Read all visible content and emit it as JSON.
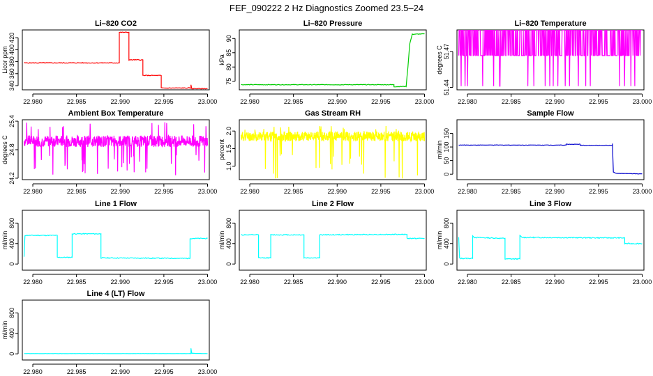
{
  "page": {
    "title": "FEF_090222  2 Hz Diagnostics Zoomed 23.5–24"
  },
  "chart_data": [
    {
      "type": "line",
      "title": "Li–820 CO2",
      "ylabel": "Licor ppm",
      "color": "#ff0000",
      "xlim": [
        22.9788,
        23.0002
      ],
      "ylim": [
        333,
        433
      ],
      "yticks": [
        340,
        360,
        380,
        400,
        420
      ],
      "xticks": [
        22.98,
        22.985,
        22.99,
        22.995,
        23.0
      ],
      "xtick_labels": [
        "22.980",
        "22.985",
        "22.990",
        "22.995",
        "23.000"
      ],
      "style": "step",
      "noise": 0.6,
      "series": [
        {
          "x": 22.979,
          "y": 378
        },
        {
          "x": 22.9899,
          "y": 378
        },
        {
          "x": 22.9899,
          "y": 429
        },
        {
          "x": 22.991,
          "y": 429
        },
        {
          "x": 22.991,
          "y": 383
        },
        {
          "x": 22.9926,
          "y": 383
        },
        {
          "x": 22.9926,
          "y": 357
        },
        {
          "x": 22.9947,
          "y": 357
        },
        {
          "x": 22.9947,
          "y": 336
        },
        {
          "x": 22.9981,
          "y": 336
        },
        {
          "x": 22.9981,
          "y": 341
        },
        {
          "x": 22.9982,
          "y": 335
        },
        {
          "x": 23.0,
          "y": 335
        }
      ]
    },
    {
      "type": "line",
      "title": "Li–820 Pressure",
      "ylabel": "kPa",
      "color": "#00cc00",
      "xlim": [
        22.9788,
        23.0002
      ],
      "ylim": [
        72,
        93
      ],
      "yticks": [
        75,
        80,
        85,
        90
      ],
      "xticks": [
        22.98,
        22.985,
        22.99,
        22.995,
        23.0
      ],
      "xtick_labels": [
        "22.980",
        "22.985",
        "22.990",
        "22.995",
        "23.000"
      ],
      "style": "step",
      "noise": 0.1,
      "series": [
        {
          "x": 22.979,
          "y": 73.8
        },
        {
          "x": 22.9965,
          "y": 73.8
        },
        {
          "x": 22.9965,
          "y": 73.1
        },
        {
          "x": 22.9979,
          "y": 73.2
        },
        {
          "x": 22.9981,
          "y": 80
        },
        {
          "x": 22.9983,
          "y": 88
        },
        {
          "x": 22.9986,
          "y": 91.5
        },
        {
          "x": 23.0,
          "y": 91.6
        }
      ]
    },
    {
      "type": "line",
      "title": "Li–820 Temperature",
      "ylabel": "degrees C",
      "color": "#ff00ff",
      "xlim": [
        22.9788,
        23.0002
      ],
      "ylim": [
        51.438,
        51.488
      ],
      "yticks": [
        51.44,
        51.47
      ],
      "xticks": [
        22.98,
        22.985,
        22.99,
        22.995,
        23.0
      ],
      "xtick_labels": [
        "22.980",
        "22.985",
        "22.990",
        "22.995",
        "23.000"
      ],
      "style": "quantized",
      "band": [
        51.4666,
        51.488
      ],
      "spike_to": 51.441,
      "seed": 3
    },
    {
      "type": "line",
      "title": "Ambient Box Temperature",
      "ylabel": "degrees C",
      "color": "#ff00ff",
      "xlim": [
        22.9788,
        23.0002
      ],
      "ylim": [
        24.17,
        25.43
      ],
      "yticks": [
        24.2,
        24.8,
        25.4
      ],
      "xticks": [
        22.98,
        22.985,
        22.99,
        22.995,
        23.0
      ],
      "xtick_labels": [
        "22.980",
        "22.985",
        "22.990",
        "22.995",
        "23.000"
      ],
      "style": "noise",
      "mean": 24.98,
      "amp": 0.12,
      "spikes_down": 24.25,
      "spikes_up": 25.38,
      "seed": 7
    },
    {
      "type": "line",
      "title": "Gas Stream RH",
      "ylabel": "percent",
      "color": "#ffff00",
      "xlim": [
        22.9788,
        23.0002
      ],
      "ylim": [
        0.62,
        2.32
      ],
      "yticks": [
        1.0,
        1.5,
        2.0
      ],
      "ytick_labels": [
        "1.0",
        "1.5",
        "2.0"
      ],
      "xticks": [
        22.98,
        22.985,
        22.99,
        22.995,
        23.0
      ],
      "xtick_labels": [
        "22.980",
        "22.985",
        "22.990",
        "22.995",
        "23.000"
      ],
      "style": "noise",
      "mean": 1.85,
      "amp": 0.14,
      "spikes_down": 0.65,
      "spikes_up": 2.15,
      "seed": 11
    },
    {
      "type": "line",
      "title": "Sample Flow",
      "ylabel": "ml/min",
      "color": "#0000cc",
      "xlim": [
        22.9788,
        23.0002
      ],
      "ylim": [
        -20,
        200
      ],
      "yticks": [
        0,
        50,
        100,
        150
      ],
      "xticks": [
        22.98,
        22.985,
        22.99,
        22.995,
        23.0
      ],
      "xtick_labels": [
        "22.980",
        "22.985",
        "22.990",
        "22.995",
        "23.000"
      ],
      "style": "step",
      "noise": 0.8,
      "series": [
        {
          "x": 22.979,
          "y": 107
        },
        {
          "x": 22.9913,
          "y": 107
        },
        {
          "x": 22.9913,
          "y": 110
        },
        {
          "x": 22.9929,
          "y": 110
        },
        {
          "x": 22.9929,
          "y": 106
        },
        {
          "x": 22.9966,
          "y": 106
        },
        {
          "x": 22.9966,
          "y": 112
        },
        {
          "x": 22.9967,
          "y": 8
        },
        {
          "x": 22.997,
          "y": 3
        },
        {
          "x": 23.0,
          "y": 1
        }
      ]
    },
    {
      "type": "line",
      "title": "Line 1 Flow",
      "ylabel": "ml/min",
      "color": "#00ffff",
      "xlim": [
        22.9788,
        23.0002
      ],
      "ylim": [
        -120,
        1050
      ],
      "yticks": [
        0,
        400,
        800
      ],
      "xticks": [
        22.98,
        22.985,
        22.99,
        22.995,
        23.0
      ],
      "xtick_labels": [
        "22.980",
        "22.985",
        "22.990",
        "22.995",
        "23.000"
      ],
      "style": "step",
      "noise": 8,
      "series": [
        {
          "x": 22.979,
          "y": 140
        },
        {
          "x": 22.9791,
          "y": 560
        },
        {
          "x": 22.9828,
          "y": 560
        },
        {
          "x": 22.9828,
          "y": 130
        },
        {
          "x": 22.9845,
          "y": 130
        },
        {
          "x": 22.9845,
          "y": 590
        },
        {
          "x": 22.9878,
          "y": 590
        },
        {
          "x": 22.9878,
          "y": 120
        },
        {
          "x": 22.998,
          "y": 110
        },
        {
          "x": 22.998,
          "y": 500
        },
        {
          "x": 23.0,
          "y": 500
        }
      ]
    },
    {
      "type": "line",
      "title": "Line 2 Flow",
      "ylabel": "ml/min",
      "color": "#00ffff",
      "xlim": [
        22.9788,
        23.0002
      ],
      "ylim": [
        -120,
        1050
      ],
      "yticks": [
        0,
        400,
        800
      ],
      "xticks": [
        22.98,
        22.985,
        22.99,
        22.995,
        23.0
      ],
      "xtick_labels": [
        "22.980",
        "22.985",
        "22.990",
        "22.995",
        "23.000"
      ],
      "style": "step",
      "noise": 8,
      "series": [
        {
          "x": 22.979,
          "y": 570
        },
        {
          "x": 22.981,
          "y": 570
        },
        {
          "x": 22.981,
          "y": 120
        },
        {
          "x": 22.9824,
          "y": 120
        },
        {
          "x": 22.9824,
          "y": 570
        },
        {
          "x": 22.9862,
          "y": 570
        },
        {
          "x": 22.9862,
          "y": 120
        },
        {
          "x": 22.988,
          "y": 120
        },
        {
          "x": 22.988,
          "y": 570
        },
        {
          "x": 22.998,
          "y": 580
        },
        {
          "x": 22.998,
          "y": 500
        },
        {
          "x": 23.0,
          "y": 500
        }
      ]
    },
    {
      "type": "line",
      "title": "Line 3 Flow",
      "ylabel": "ml/min",
      "color": "#00ffff",
      "xlim": [
        22.9788,
        23.0002
      ],
      "ylim": [
        -120,
        1050
      ],
      "yticks": [
        0,
        400,
        800
      ],
      "xticks": [
        22.98,
        22.985,
        22.99,
        22.995,
        23.0
      ],
      "xtick_labels": [
        "22.980",
        "22.985",
        "22.990",
        "22.995",
        "23.000"
      ],
      "style": "step",
      "noise": 10,
      "series": [
        {
          "x": 22.979,
          "y": 520
        },
        {
          "x": 22.9791,
          "y": 110
        },
        {
          "x": 22.9806,
          "y": 110
        },
        {
          "x": 22.9806,
          "y": 560
        },
        {
          "x": 22.9808,
          "y": 520
        },
        {
          "x": 22.9843,
          "y": 500
        },
        {
          "x": 22.9843,
          "y": 100
        },
        {
          "x": 22.986,
          "y": 100
        },
        {
          "x": 22.986,
          "y": 560
        },
        {
          "x": 22.9862,
          "y": 520
        },
        {
          "x": 22.998,
          "y": 510
        },
        {
          "x": 22.998,
          "y": 400
        },
        {
          "x": 23.0,
          "y": 400
        }
      ]
    },
    {
      "type": "line",
      "title": "Line 4 (LT) Flow",
      "ylabel": "ml/min",
      "color": "#00ffff",
      "xlim": [
        22.9788,
        23.0002
      ],
      "ylim": [
        -120,
        1050
      ],
      "yticks": [
        0,
        400,
        800
      ],
      "xticks": [
        22.98,
        22.985,
        22.99,
        22.995,
        23.0
      ],
      "xtick_labels": [
        "22.980",
        "22.985",
        "22.990",
        "22.995",
        "23.000"
      ],
      "style": "step",
      "noise": 2,
      "series": [
        {
          "x": 22.979,
          "y": 5
        },
        {
          "x": 22.9981,
          "y": 5
        },
        {
          "x": 22.9981,
          "y": 110
        },
        {
          "x": 22.9982,
          "y": 10
        },
        {
          "x": 23.0,
          "y": 5
        }
      ]
    }
  ]
}
